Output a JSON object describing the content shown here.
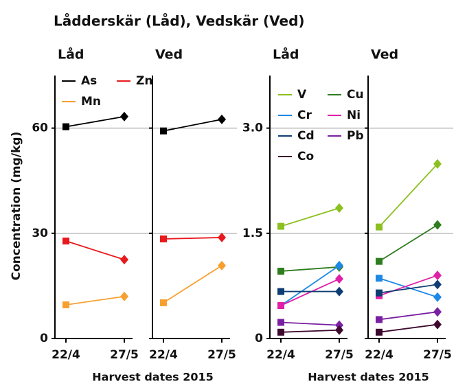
{
  "title": "Lådderskär (Låd), Vedskär (Ved)",
  "ylabel": "Concentration (mg/kg)",
  "chart_data": [
    {
      "type": "line",
      "xlabel": "Harvest dates 2015",
      "ylim": [
        0,
        75
      ],
      "yticks": [
        0,
        30,
        60
      ],
      "grid": true,
      "panels": [
        {
          "title": "Låd",
          "categories": [
            "22/4",
            "27/5"
          ],
          "series": [
            {
              "name": "As",
              "color": "#000000",
              "values": [
                60.4,
                63.3
              ]
            },
            {
              "name": "Zn",
              "color": "#e8191c",
              "values": [
                27.8,
                22.5
              ]
            },
            {
              "name": "Mn",
              "color": "#f7a030",
              "values": [
                9.6,
                12.0
              ]
            }
          ]
        },
        {
          "title": "Ved",
          "categories": [
            "22/4",
            "27/5"
          ],
          "series": [
            {
              "color": "#000000",
              "values": [
                59.2,
                62.5
              ]
            },
            {
              "color": "#e8191c",
              "values": [
                28.4,
                28.8
              ]
            },
            {
              "color": "#f7a030",
              "values": [
                10.2,
                20.8
              ]
            }
          ]
        }
      ]
    },
    {
      "type": "line",
      "xlabel": "Harvest dates 2015",
      "ylim": [
        0,
        3.75
      ],
      "yticks": [
        0,
        1.5,
        {
          "value": 3,
          "label": "3.0"
        }
      ],
      "grid": true,
      "panels": [
        {
          "title": "Låd",
          "categories": [
            "22/4",
            "27/5"
          ],
          "series": [
            {
              "name": "V",
              "color": "#8cc020",
              "values": [
                1.6,
                1.86
              ]
            },
            {
              "name": "Cu",
              "color": "#2e7d1e",
              "values": [
                0.96,
                1.02
              ]
            },
            {
              "name": "Cr",
              "color": "#1e88e5",
              "values": [
                0.47,
                1.04
              ]
            },
            {
              "name": "Ni",
              "color": "#e020a8",
              "values": [
                0.47,
                0.85
              ]
            },
            {
              "name": "Cd",
              "color": "#0d3d73",
              "values": [
                0.67,
                0.67
              ]
            },
            {
              "name": "Pb",
              "color": "#7b1fa2",
              "values": [
                0.23,
                0.19
              ]
            },
            {
              "name": "Co",
              "color": "#3d0a2e",
              "values": [
                0.09,
                0.12
              ]
            }
          ]
        },
        {
          "title": "Ved",
          "categories": [
            "22/4",
            "27/5"
          ],
          "series": [
            {
              "color": "#8cc020",
              "values": [
                1.59,
                2.49
              ]
            },
            {
              "color": "#2e7d1e",
              "values": [
                1.1,
                1.62
              ]
            },
            {
              "color": "#1e88e5",
              "values": [
                0.86,
                0.59
              ]
            },
            {
              "color": "#e020a8",
              "values": [
                0.61,
                0.9
              ]
            },
            {
              "color": "#0d3d73",
              "values": [
                0.65,
                0.77
              ]
            },
            {
              "color": "#7b1fa2",
              "values": [
                0.27,
                0.38
              ]
            },
            {
              "color": "#3d0a2e",
              "values": [
                0.09,
                0.2
              ]
            }
          ]
        }
      ]
    }
  ]
}
